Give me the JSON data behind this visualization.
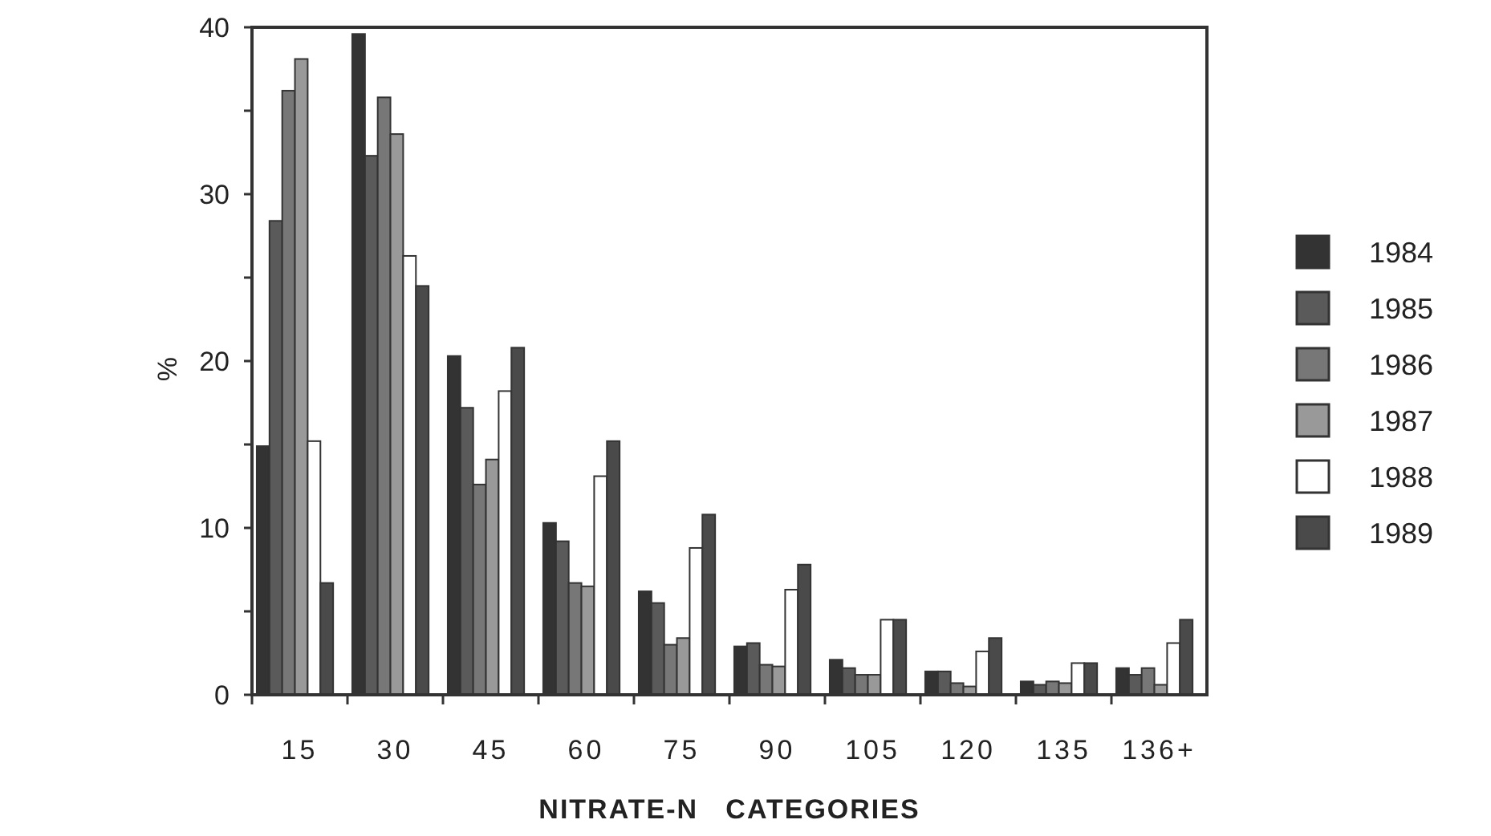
{
  "chart_data": {
    "type": "bar",
    "xlabel": "NITRATE-N   CATEGORIES",
    "ylabel": "%",
    "categories": [
      "15",
      "30",
      "45",
      "60",
      "75",
      "90",
      "105",
      "120",
      "135",
      "136+"
    ],
    "series": [
      {
        "name": "1984",
        "color": "#333333",
        "values": [
          14.9,
          39.6,
          20.3,
          10.3,
          6.2,
          2.9,
          2.1,
          1.4,
          0.8,
          1.6
        ]
      },
      {
        "name": "1985",
        "color": "#5a5a5a",
        "values": [
          28.4,
          32.3,
          17.2,
          9.2,
          5.5,
          3.1,
          1.6,
          1.4,
          0.6,
          1.2
        ]
      },
      {
        "name": "1986",
        "color": "#777777",
        "values": [
          36.2,
          35.8,
          12.6,
          6.7,
          3.0,
          1.8,
          1.2,
          0.7,
          0.8,
          1.6
        ]
      },
      {
        "name": "1987",
        "color": "#999999",
        "values": [
          38.1,
          33.6,
          14.1,
          6.5,
          3.4,
          1.7,
          1.2,
          0.5,
          0.7,
          0.6
        ]
      },
      {
        "name": "1988",
        "color": "#ffffff",
        "values": [
          15.2,
          26.3,
          18.2,
          13.1,
          8.8,
          6.3,
          4.5,
          2.6,
          1.9,
          3.1
        ]
      },
      {
        "name": "1989",
        "color": "#4a4a4a",
        "values": [
          6.7,
          24.5,
          20.8,
          15.2,
          10.8,
          7.8,
          4.5,
          3.4,
          1.9,
          4.5
        ]
      }
    ],
    "ylim": [
      0,
      40
    ],
    "yticks": [
      0,
      {
        "value": 5,
        "label": null
      },
      10,
      {
        "value": 15,
        "label": null
      },
      20,
      {
        "value": 25,
        "label": null
      },
      30,
      {
        "value": 35,
        "label": null
      },
      40
    ],
    "legend": "right",
    "grid": false
  }
}
